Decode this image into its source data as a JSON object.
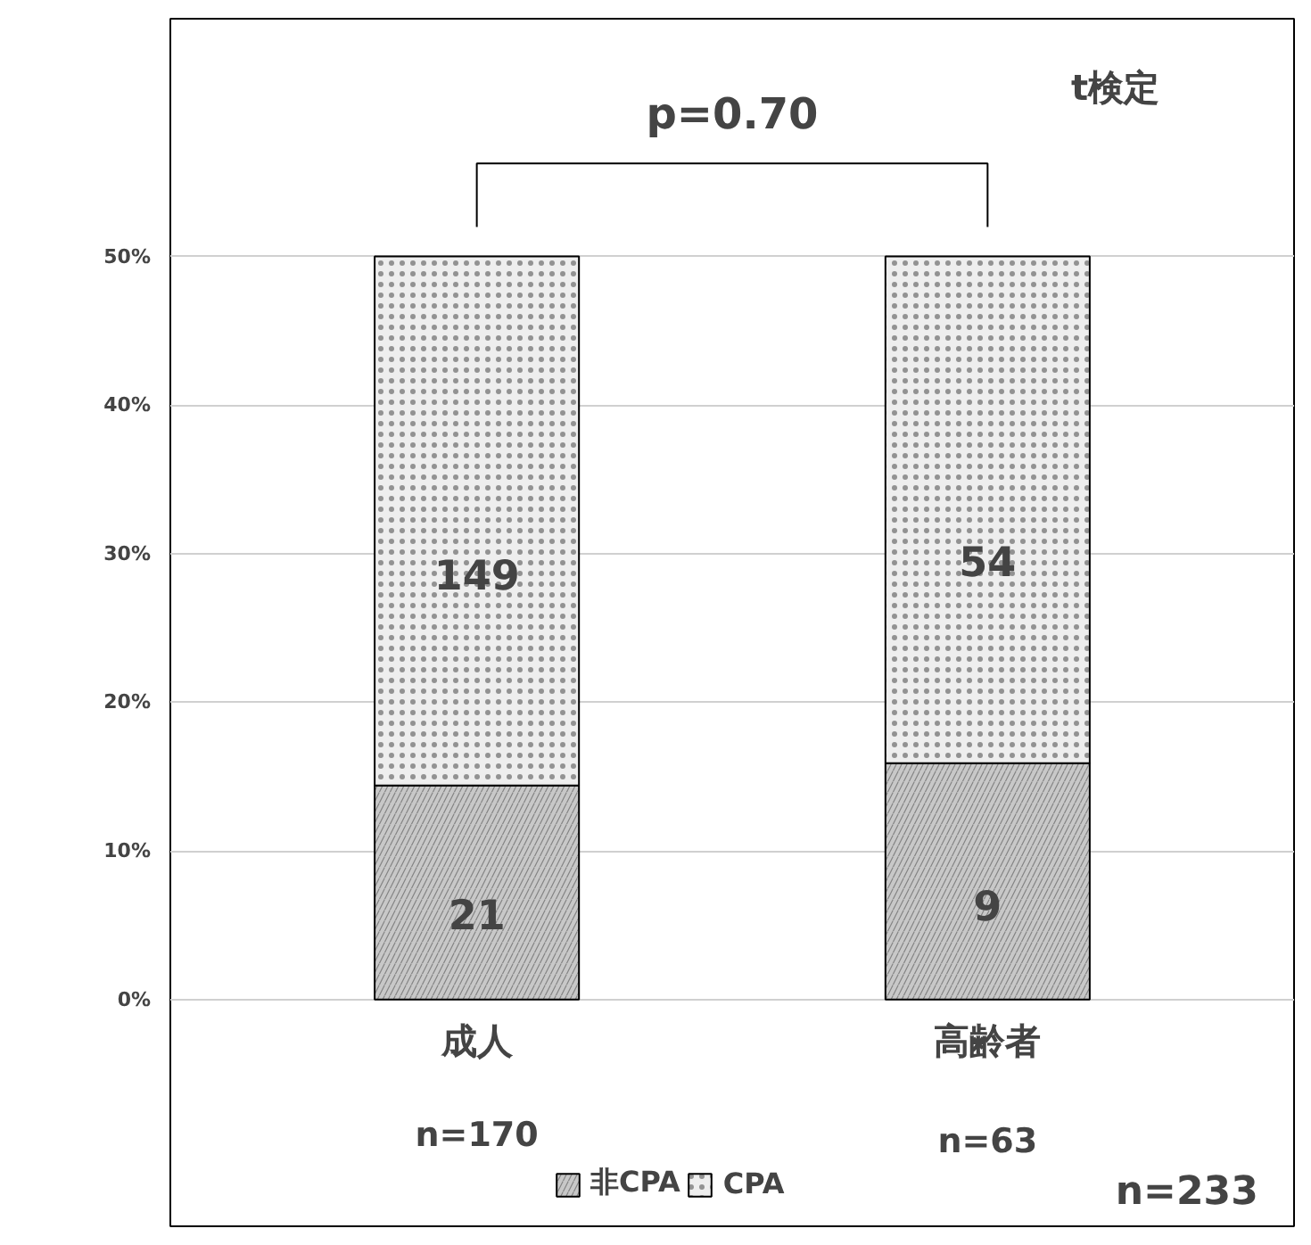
{
  "chart_data": {
    "type": "bar",
    "stacked": true,
    "categories": [
      "成人",
      "高齢者"
    ],
    "series": [
      {
        "name": "非CPA",
        "color": "#c8c8c8",
        "values": [
          14.4,
          15.9
        ]
      },
      {
        "name": "CPA",
        "color": "#eeeeee",
        "values": [
          35.6,
          34.1
        ]
      }
    ],
    "ylim": [
      0,
      66
    ],
    "yticks": [
      {
        "value": 0,
        "label": "0%"
      },
      {
        "value": 10,
        "label": "10%"
      },
      {
        "value": 20,
        "label": "20%"
      },
      {
        "value": 30,
        "label": "30%"
      },
      {
        "value": 40,
        "label": "40%"
      },
      {
        "value": 50,
        "label": "50%"
      }
    ],
    "grid": "y",
    "legend": "bottom",
    "annotations": [
      "21",
      "9",
      "149",
      "54",
      "p=0.70",
      "t検定",
      "n=170",
      "n=63",
      "n=233"
    ]
  }
}
